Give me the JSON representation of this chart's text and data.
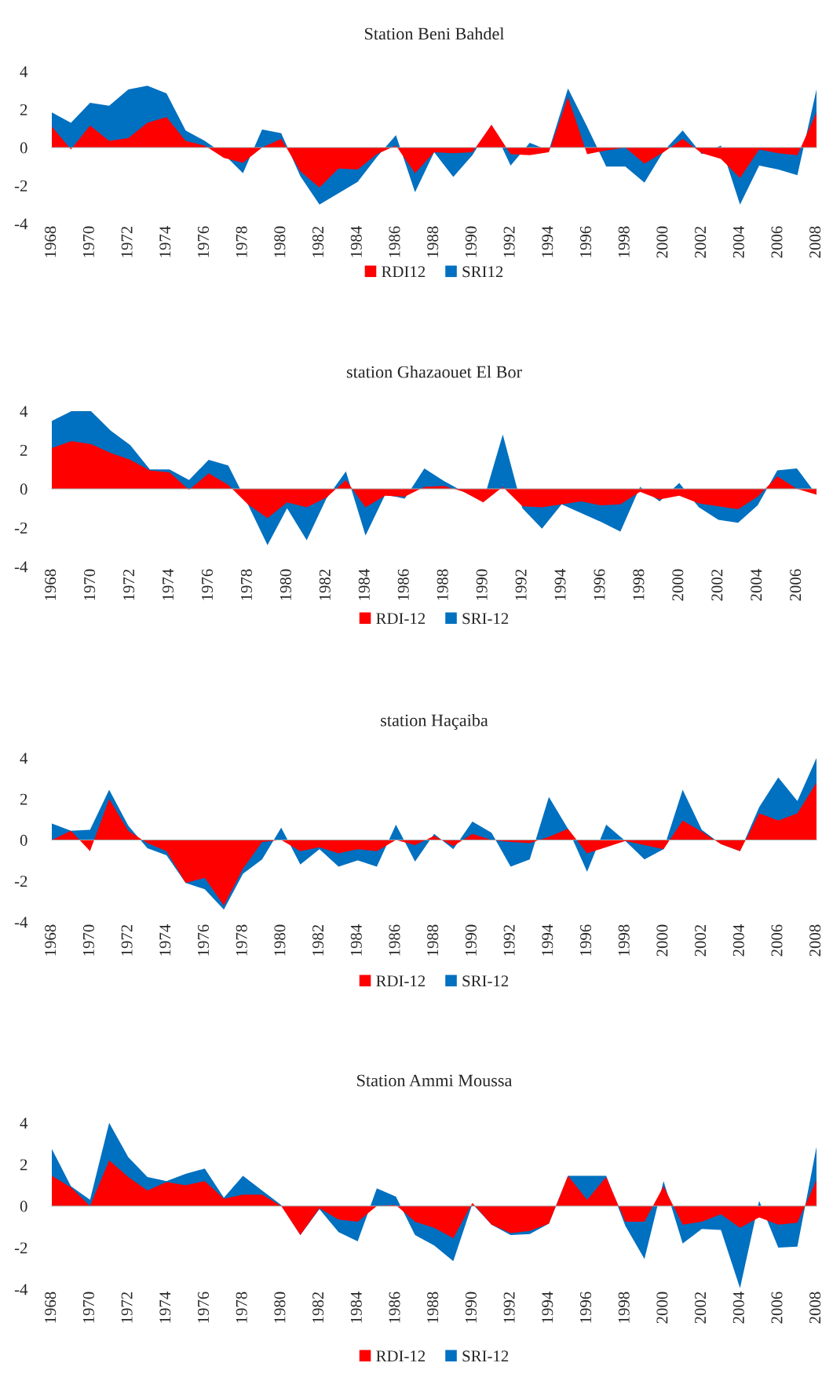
{
  "chart_data": [
    {
      "type": "area",
      "title": "Station Beni Bahdel",
      "categories": [
        "1968",
        null,
        "1970",
        null,
        "1972",
        null,
        "1974",
        null,
        "1976",
        null,
        "1978",
        null,
        "1980",
        null,
        "1982",
        null,
        "1984",
        null,
        "1986",
        null,
        "1988",
        null,
        "1990",
        null,
        "1992",
        null,
        "1994",
        null,
        "1996",
        null,
        "1998",
        null,
        "2000",
        null,
        "2002",
        null,
        "2004",
        null,
        "2006",
        null,
        "2008"
      ],
      "series": [
        {
          "name": "RDI12",
          "color": "#ff0000",
          "values": [
            1.1,
            -0.1,
            1.15,
            0.35,
            0.5,
            1.3,
            1.6,
            0.35,
            0.1,
            -0.55,
            -0.8,
            0,
            0.45,
            -1.25,
            -2.1,
            -1.1,
            -1.15,
            -0.35,
            0.1,
            -1.35,
            -0.25,
            -0.3,
            -0.25,
            1.2,
            -0.35,
            -0.4,
            -0.25,
            2.65,
            -0.35,
            -0.15,
            0,
            -0.85,
            -0.25,
            0.45,
            -0.3,
            -0.6,
            -1.6,
            -0.1,
            -0.3,
            -0.4,
            1.85
          ]
        },
        {
          "name": "SRI12",
          "color": "#0070c0",
          "values": [
            1.85,
            1.3,
            2.35,
            2.2,
            3.05,
            3.25,
            2.85,
            0.9,
            0.35,
            -0.35,
            -1.35,
            0.95,
            0.75,
            -1.5,
            -3.0,
            null,
            -1.8,
            -0.5,
            0.65,
            -2.35,
            -0.25,
            -1.55,
            -0.4,
            1.2,
            -0.95,
            0.25,
            -0.15,
            3.1,
            1.1,
            -1.0,
            -1.0,
            -1.85,
            -0.2,
            0.9,
            -0.35,
            0.1,
            -3.0,
            -0.95,
            -1.15,
            -1.45,
            3.05
          ]
        }
      ],
      "ylim": [
        -4,
        4
      ],
      "yticks": [
        -4,
        -2,
        0,
        2,
        4
      ],
      "legend": "bottom"
    },
    {
      "type": "area",
      "title": "station Ghazaouet El Bor",
      "categories": [
        "1968",
        null,
        "1970",
        null,
        "1972",
        null,
        "1974",
        null,
        "1976",
        null,
        "1978",
        null,
        "1980",
        null,
        "1982",
        null,
        "1984",
        null,
        "1986",
        null,
        "1988",
        null,
        "1990",
        null,
        "1992",
        null,
        "1994",
        null,
        "1996",
        null,
        "1998",
        null,
        "2000",
        null,
        "2002",
        null,
        "2004",
        null,
        "2006",
        null
      ],
      "series": [
        {
          "name": "RDI-12",
          "color": "#ff0000",
          "values": [
            2.1,
            2.45,
            2.3,
            1.85,
            1.5,
            0.95,
            0.85,
            -0.05,
            0.8,
            0.2,
            -0.8,
            -1.5,
            -0.7,
            -0.95,
            -0.45,
            0.45,
            -0.95,
            -0.35,
            -0.4,
            0.1,
            0.15,
            -0.15,
            -0.7,
            0.1,
            -0.9,
            -0.95,
            -0.8,
            -0.65,
            -0.85,
            -0.8,
            -0.15,
            -0.55,
            -0.35,
            -0.75,
            -0.9,
            -1.05,
            -0.4,
            0.65,
            0,
            -0.3
          ]
        },
        {
          "name": "SRI-12",
          "color": "#0070c0",
          "values": [
            3.5,
            4,
            4,
            3.0,
            2.25,
            1.0,
            1.0,
            0.45,
            1.5,
            1.2,
            -0.8,
            -2.9,
            -1.0,
            -2.65,
            -0.5,
            0.9,
            -2.4,
            -0.3,
            -0.5,
            1.05,
            0.4,
            -0.15,
            -0.65,
            2.8,
            -1.0,
            -2.05,
            -0.8,
            null,
            -1.7,
            -2.2,
            0.1,
            -0.65,
            0.3,
            -0.95,
            -1.6,
            -1.75,
            -0.85,
            0.95,
            1.05,
            -0.3
          ]
        }
      ],
      "ylim": [
        -4,
        4
      ],
      "yticks": [
        -4,
        -2,
        0,
        2,
        4
      ],
      "legend": "bottom"
    },
    {
      "type": "area",
      "title": "station Haçaiba",
      "categories": [
        "1968",
        null,
        "1970",
        null,
        "1972",
        null,
        "1974",
        null,
        "1976",
        null,
        "1978",
        null,
        "1980",
        null,
        "1982",
        null,
        "1984",
        null,
        "1986",
        null,
        "1988",
        null,
        "1990",
        null,
        "1992",
        null,
        "1994",
        null,
        "1996",
        null,
        "1998",
        null,
        "2000",
        null,
        "2002",
        null,
        "2004",
        null,
        "2006",
        null,
        "2008"
      ],
      "series": [
        {
          "name": "RDI-12",
          "color": "#ff0000",
          "values": [
            0,
            0.45,
            -0.55,
            2.0,
            0.45,
            -0.15,
            -0.55,
            -2.1,
            -1.85,
            -3.2,
            -1.4,
            -0.1,
            0,
            -0.55,
            -0.35,
            -0.65,
            -0.45,
            -0.55,
            0,
            -0.25,
            0.2,
            -0.3,
            0.3,
            0,
            -0.1,
            -0.15,
            0.15,
            0.55,
            -0.65,
            -0.35,
            -0.05,
            -0.25,
            -0.45,
            0.95,
            0.4,
            -0.2,
            -0.55,
            1.3,
            0.95,
            1.3,
            2.8
          ]
        },
        {
          "name": "SRI-12",
          "color": "#0070c0",
          "values": [
            0.8,
            0.45,
            0.5,
            2.45,
            0.7,
            -0.4,
            -0.75,
            -2.1,
            -2.4,
            -3.4,
            -1.65,
            -0.95,
            0.6,
            -1.2,
            -0.45,
            -1.3,
            -1.0,
            -1.3,
            0.75,
            -1.05,
            0.3,
            -0.45,
            0.9,
            0.35,
            -1.3,
            -0.95,
            2.1,
            0.55,
            -1.55,
            0.75,
            -0.05,
            -0.95,
            -0.45,
            2.45,
            0.5,
            -0.2,
            -0.55,
            1.6,
            3.05,
            1.9,
            4
          ]
        }
      ],
      "ylim": [
        -4,
        4
      ],
      "yticks": [
        -4,
        -2,
        0,
        2,
        4
      ],
      "legend": "bottom"
    },
    {
      "type": "area",
      "title": "Station Ammi Moussa",
      "categories": [
        "1968",
        null,
        "1970",
        null,
        "1972",
        null,
        "1974",
        null,
        "1976",
        null,
        "1978",
        null,
        "1980",
        null,
        "1982",
        null,
        "1984",
        null,
        "1986",
        null,
        "1988",
        null,
        "1990",
        null,
        "1992",
        null,
        "1994",
        null,
        "1996",
        null,
        "1998",
        null,
        "2000",
        null,
        "2002",
        null,
        "2004",
        null,
        "2006",
        null,
        "2008"
      ],
      "series": [
        {
          "name": "RDI-12",
          "color": "#ff0000",
          "values": [
            1.45,
            0.9,
            0,
            2.2,
            1.4,
            0.75,
            1.15,
            1.0,
            1.2,
            0.35,
            0.55,
            0.55,
            0,
            -1.4,
            -0.1,
            -0.65,
            -0.75,
            0,
            0.05,
            -0.75,
            -1.05,
            -1.55,
            0.15,
            -0.9,
            -1.3,
            -1.2,
            -0.85,
            1.45,
            0.3,
            1.4,
            -0.75,
            -0.75,
            0.95,
            -0.9,
            -0.75,
            -0.4,
            -1.05,
            -0.55,
            -0.9,
            -0.8,
            1.25
          ]
        },
        {
          "name": "SRI-12",
          "color": "#0070c0",
          "values": [
            2.75,
            0.95,
            0.3,
            4,
            2.35,
            1.4,
            1.2,
            1.55,
            1.8,
            0.4,
            1.45,
            0.75,
            0.05,
            -1.4,
            -0.15,
            -1.25,
            -1.7,
            0.85,
            0.45,
            -1.4,
            -1.9,
            -2.65,
            0.1,
            -0.9,
            -1.4,
            -1.35,
            -0.85,
            1.45,
            null,
            1.45,
            -0.95,
            -2.55,
            1.2,
            -1.8,
            -1.1,
            -1.15,
            -3.95,
            0.25,
            -2.0,
            -1.95,
            2.85
          ]
        }
      ],
      "ylim": [
        -4,
        4
      ],
      "yticks": [
        -4,
        -2,
        0,
        2,
        4
      ],
      "legend": "bottom"
    }
  ]
}
